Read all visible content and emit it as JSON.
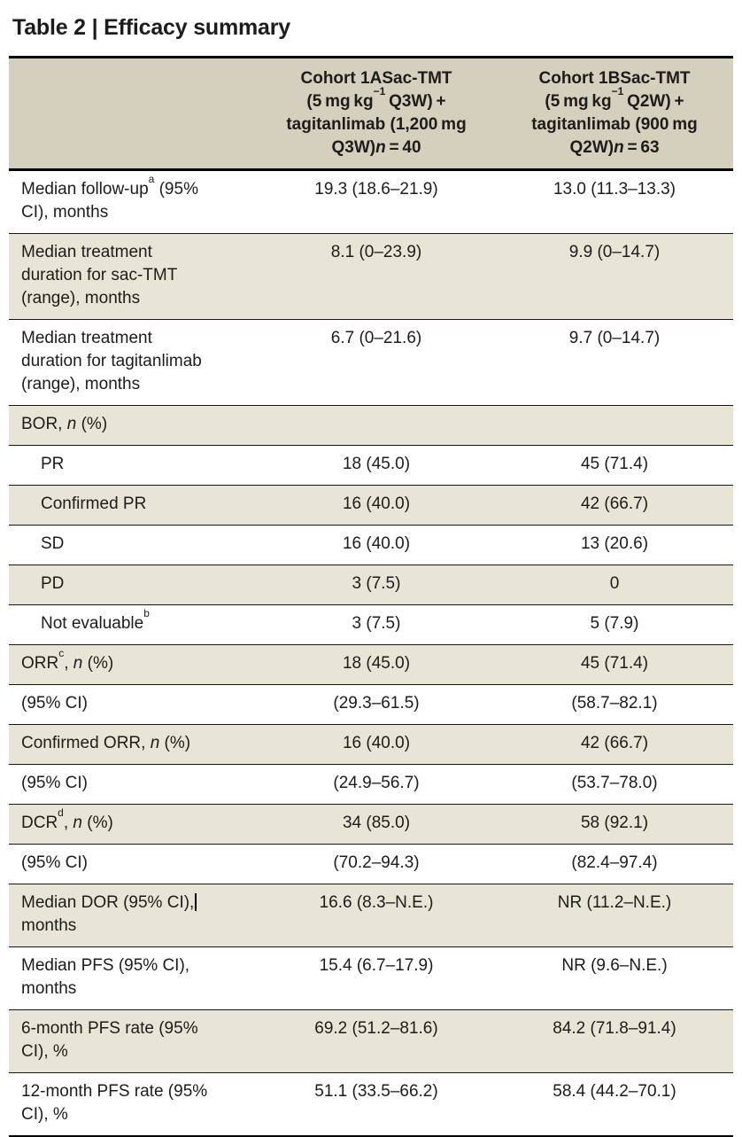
{
  "page": {
    "title": "Table 2 | Efficacy summary"
  },
  "colors": {
    "header_bg": "#d5d0bd",
    "row_alt_bg": "#e9e5d6",
    "row_bg": "#ffffff",
    "rule_heavy": "#000000",
    "rule_light": "#161616",
    "text": "#1c1c1a"
  },
  "table": {
    "header_columns": [
      "Cohort 1ASac-TMT (5 mg kg^{−1} Q3W) + tagitanlimab (1,200 mg Q3W)*n* = 40",
      "Cohort 1BSac-TMT (5 mg kg^{−1} Q2W) + tagitanlimab (900 mg Q2W)*n* = 63"
    ],
    "rows": [
      {
        "label": "Median follow-up^{a} (95% CI), months",
        "indent": false,
        "values": [
          "19.3 (18.6–21.9)",
          "13.0 (11.3–13.3)"
        ]
      },
      {
        "label": "Median treatment duration for sac-TMT (range), months",
        "indent": false,
        "values": [
          "8.1 (0–23.9)",
          "9.9 (0–14.7)"
        ]
      },
      {
        "label": "Median treatment duration for tagitanlimab (range), months",
        "indent": false,
        "values": [
          "6.7 (0–21.6)",
          "9.7 (0–14.7)"
        ]
      },
      {
        "label": "BOR, *n* (%)",
        "indent": false,
        "values": [
          "",
          ""
        ]
      },
      {
        "label": "PR",
        "indent": true,
        "values": [
          "18 (45.0)",
          "45 (71.4)"
        ]
      },
      {
        "label": "Confirmed PR",
        "indent": true,
        "values": [
          "16 (40.0)",
          "42 (66.7)"
        ]
      },
      {
        "label": "SD",
        "indent": true,
        "values": [
          "16 (40.0)",
          "13 (20.6)"
        ]
      },
      {
        "label": "PD",
        "indent": true,
        "values": [
          "3 (7.5)",
          "0"
        ]
      },
      {
        "label": "Not evaluable^{b}",
        "indent": true,
        "values": [
          "3 (7.5)",
          "5 (7.9)"
        ]
      },
      {
        "label": "ORR^{c}, *n* (%)",
        "indent": false,
        "values": [
          "18 (45.0)",
          "45 (71.4)"
        ]
      },
      {
        "label": "(95% CI)",
        "indent": false,
        "values": [
          "(29.3–61.5)",
          "(58.7–82.1)"
        ]
      },
      {
        "label": "Confirmed ORR, *n* (%)",
        "indent": false,
        "values": [
          "16 (40.0)",
          "42 (66.7)"
        ]
      },
      {
        "label": "(95% CI)",
        "indent": false,
        "values": [
          "(24.9–56.7)",
          "(53.7–78.0)"
        ]
      },
      {
        "label": "DCR^{d}, *n* (%)",
        "indent": false,
        "values": [
          "34 (85.0)",
          "58 (92.1)"
        ]
      },
      {
        "label": "(95% CI)",
        "indent": false,
        "values": [
          "(70.2–94.3)",
          "(82.4–97.4)"
        ]
      },
      {
        "label": "Median DOR (95% CI),{caret} months",
        "indent": false,
        "values": [
          "16.6 (8.3–N.E.)",
          "NR (11.2–N.E.)"
        ]
      },
      {
        "label": "Median PFS (95% CI), months",
        "indent": false,
        "values": [
          "15.4 (6.7–17.9)",
          "NR (9.6–N.E.)"
        ]
      },
      {
        "label": "6-month PFS rate (95% CI), %",
        "indent": false,
        "values": [
          "69.2 (51.2–81.6)",
          "84.2 (71.8–91.4)"
        ]
      },
      {
        "label": "12-month PFS rate (95% CI), %",
        "indent": false,
        "values": [
          "51.1 (33.5–66.2)",
          "58.4 (44.2–70.1)"
        ]
      }
    ]
  }
}
